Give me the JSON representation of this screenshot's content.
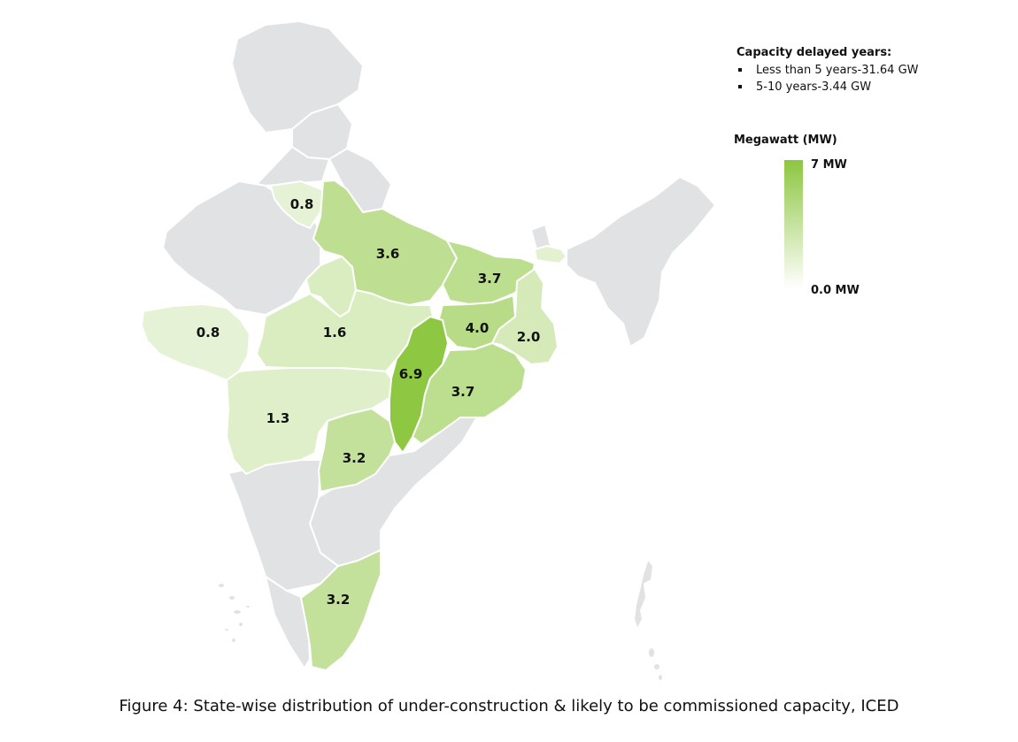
{
  "map_title": "",
  "caption": "Figure 4: State-wise distribution of under-construction & likely to be commissioned capacity, ICED",
  "delay_legend": {
    "title": "Capacity delayed years:",
    "items": [
      "Less than 5 years-31.64 GW",
      "5-10 years-3.44 GW"
    ]
  },
  "scale_legend": {
    "title": "Megawatt (MW)",
    "max_label": "7 MW",
    "min_label": "0.0 MW",
    "max_value": 7,
    "min_value": 0,
    "color_high": "#8dc63f",
    "color_low": "#ffffff"
  },
  "colors": {
    "no_data": "#e1e2e3",
    "border": "#ffffff"
  },
  "states": [
    {
      "id": "punjab-haryana",
      "label": "0.8",
      "value": 0.8
    },
    {
      "id": "uttar-pradesh",
      "label": "3.6",
      "value": 3.6
    },
    {
      "id": "bihar",
      "label": "3.7",
      "value": 3.7
    },
    {
      "id": "west-bengal-north",
      "label": "",
      "value": 1.0
    },
    {
      "id": "jharkhand",
      "label": "4.0",
      "value": 4.0
    },
    {
      "id": "west-bengal",
      "label": "2.0",
      "value": 2.0
    },
    {
      "id": "gujarat",
      "label": "0.8",
      "value": 0.8
    },
    {
      "id": "rajasthan-east",
      "label": "",
      "value": 1.6
    },
    {
      "id": "madhya-pradesh",
      "label": "1.6",
      "value": 1.6
    },
    {
      "id": "chhattisgarh",
      "label": "6.9",
      "value": 6.9
    },
    {
      "id": "odisha",
      "label": "3.7",
      "value": 3.7
    },
    {
      "id": "maharashtra",
      "label": "1.3",
      "value": 1.3
    },
    {
      "id": "telangana",
      "label": "3.2",
      "value": 3.2
    },
    {
      "id": "tamil-nadu",
      "label": "3.2",
      "value": 3.2
    }
  ]
}
